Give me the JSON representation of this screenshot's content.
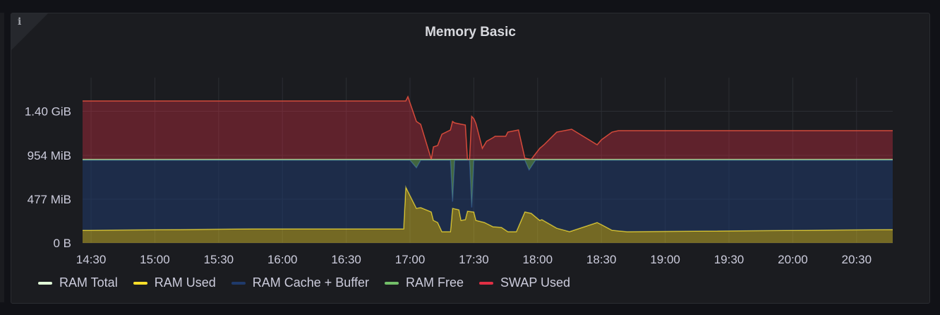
{
  "panel": {
    "title": "Memory Basic",
    "info_icon": "info-icon"
  },
  "chart_data": {
    "type": "area",
    "title": "Memory Basic",
    "stacked": true,
    "x_ticks": [
      "14:30",
      "15:00",
      "15:30",
      "16:00",
      "16:30",
      "17:00",
      "17:30",
      "18:00",
      "18:30",
      "19:00",
      "19:30",
      "20:00",
      "20:30"
    ],
    "y_ticks": [
      {
        "value": 0,
        "label": "0 B"
      },
      {
        "value": 477,
        "label": "477 MiB"
      },
      {
        "value": 954,
        "label": "954 MiB"
      },
      {
        "value": 1434,
        "label": "1.40 GiB"
      }
    ],
    "y_unit": "MiB",
    "ylim": [
      0,
      1800
    ],
    "xlim": [
      "14:26",
      "20:47"
    ],
    "grid": true,
    "legend_position": "bottom",
    "series": [
      {
        "name": "RAM Total",
        "color": "#e0f9d7",
        "constant": 910
      },
      {
        "name": "RAM Used",
        "color": "#fade2a",
        "points": [
          [
            "14:26",
            138
          ],
          [
            "15:10",
            146
          ],
          [
            "15:46",
            154
          ],
          [
            "16:57",
            154
          ],
          [
            "16:58",
            608
          ],
          [
            "17:03",
            377
          ],
          [
            "17:05",
            385
          ],
          [
            "17:10",
            338
          ],
          [
            "17:11",
            246
          ],
          [
            "17:13",
            223
          ],
          [
            "17:15",
            123
          ],
          [
            "17:19",
            123
          ],
          [
            "17:20",
            377
          ],
          [
            "17:23",
            361
          ],
          [
            "17:24",
            246
          ],
          [
            "17:26",
            254
          ],
          [
            "17:27",
            346
          ],
          [
            "17:30",
            338
          ],
          [
            "17:31",
            246
          ],
          [
            "17:35",
            223
          ],
          [
            "17:39",
            177
          ],
          [
            "17:43",
            169
          ],
          [
            "17:46",
            123
          ],
          [
            "17:50",
            123
          ],
          [
            "17:54",
            338
          ],
          [
            "17:57",
            323
          ],
          [
            "18:01",
            246
          ],
          [
            "18:02",
            254
          ],
          [
            "18:09",
            161
          ],
          [
            "18:15",
            123
          ],
          [
            "18:28",
            223
          ],
          [
            "18:30",
            200
          ],
          [
            "18:35",
            138
          ],
          [
            "18:42",
            123
          ],
          [
            "20:47",
            146
          ]
        ]
      },
      {
        "name": "RAM Cache + Buffer",
        "color": "#1f3a6b",
        "derived": "RAM Total - RAM Used - RAM Free"
      },
      {
        "name": "RAM Free",
        "color": "#73bf69",
        "points": [
          [
            "14:26",
            10
          ],
          [
            "17:00",
            10
          ],
          [
            "17:03",
            92
          ],
          [
            "17:05",
            10
          ],
          [
            "17:19",
            10
          ],
          [
            "17:20",
            460
          ],
          [
            "17:21",
            10
          ],
          [
            "17:28",
            10
          ],
          [
            "17:29",
            523
          ],
          [
            "17:30",
            10
          ],
          [
            "17:54",
            10
          ],
          [
            "17:56",
            115
          ],
          [
            "17:59",
            10
          ],
          [
            "20:47",
            10
          ]
        ]
      },
      {
        "name": "SWAP Used",
        "color": "#e02f44",
        "points": [
          [
            "14:26",
            636
          ],
          [
            "16:58",
            636
          ],
          [
            "16:59",
            682
          ],
          [
            "17:03",
            413
          ],
          [
            "17:05",
            382
          ],
          [
            "17:10",
            0
          ],
          [
            "17:11",
            136
          ],
          [
            "17:13",
            151
          ],
          [
            "17:14",
            213
          ],
          [
            "17:15",
            274
          ],
          [
            "17:19",
            320
          ],
          [
            "17:20",
            413
          ],
          [
            "17:21",
            397
          ],
          [
            "17:26",
            374
          ],
          [
            "17:27",
            0
          ],
          [
            "17:28",
            0
          ],
          [
            "17:29",
            467
          ],
          [
            "17:30",
            443
          ],
          [
            "17:31",
            390
          ],
          [
            "17:34",
            120
          ],
          [
            "17:36",
            197
          ],
          [
            "17:39",
            236
          ],
          [
            "17:40",
            251
          ],
          [
            "17:45",
            251
          ],
          [
            "17:46",
            297
          ],
          [
            "17:51",
            320
          ],
          [
            "17:54",
            13
          ],
          [
            "17:57",
            0
          ],
          [
            "18:01",
            120
          ],
          [
            "18:03",
            159
          ],
          [
            "18:09",
            297
          ],
          [
            "18:16",
            328
          ],
          [
            "18:28",
            159
          ],
          [
            "18:30",
            213
          ],
          [
            "18:35",
            297
          ],
          [
            "18:38",
            313
          ],
          [
            "20:47",
            313
          ]
        ]
      }
    ]
  },
  "legend": [
    {
      "label": "RAM Total",
      "color": "#e0f9d7"
    },
    {
      "label": "RAM Used",
      "color": "#fade2a"
    },
    {
      "label": "RAM Cache + Buffer",
      "color": "#1f3a6b"
    },
    {
      "label": "RAM Free",
      "color": "#73bf69"
    },
    {
      "label": "SWAP Used",
      "color": "#e02f44"
    }
  ]
}
